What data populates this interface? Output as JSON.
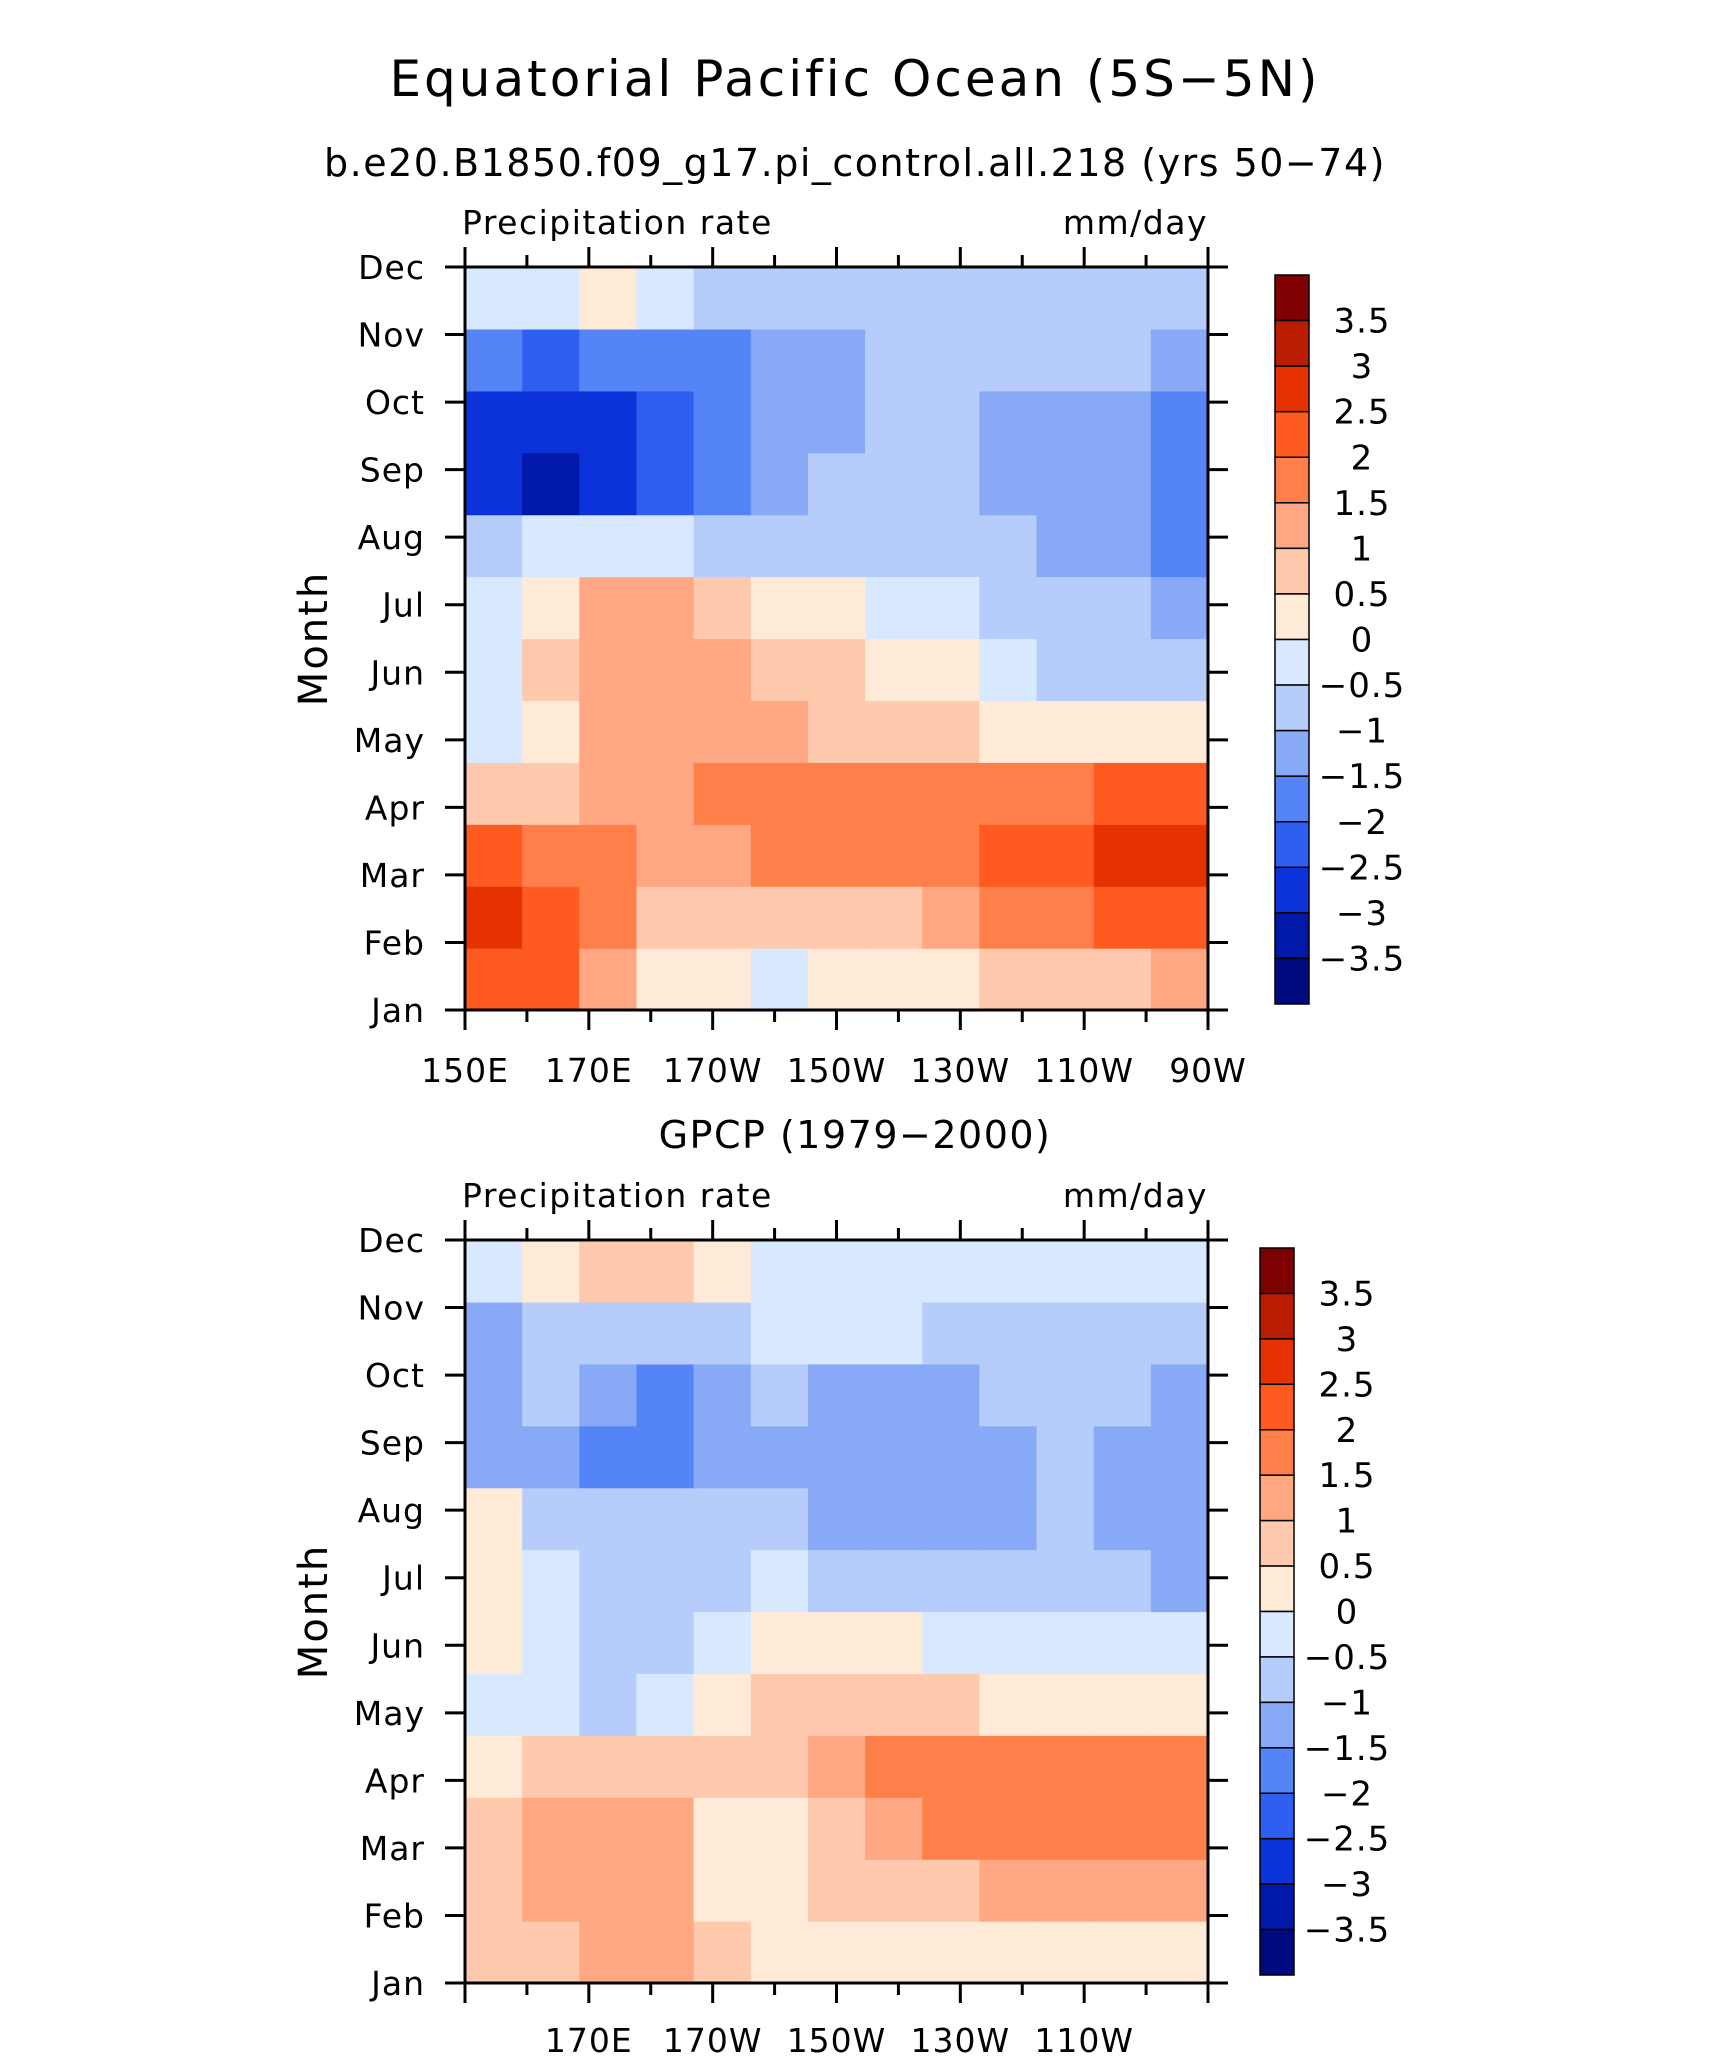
{
  "figure": {
    "title": "Equatorial Pacific Ocean (5S−5N)"
  },
  "colorbar": {
    "labels": [
      "3.5",
      "3",
      "2.5",
      "2",
      "1.5",
      "1",
      "0.5",
      "0",
      "−0.5",
      "−1",
      "−1.5",
      "−2",
      "−2.5",
      "−3",
      "−3.5"
    ],
    "colors": [
      "#7f0000",
      "#b91c00",
      "#e63200",
      "#ff5a1f",
      "#ff7f4a",
      "#ffa783",
      "#ffc9ad",
      "#ffe9d7",
      "#d8e9ff",
      "#b6cdfb",
      "#88a9f6",
      "#5484f5",
      "#2e5ff0",
      "#0c33d9",
      "#0019a8",
      "#000a80"
    ]
  },
  "chart_data": [
    {
      "type": "heatmap",
      "subtitle": "b.e20.B1850.f09_g17.pi_control.all.218 (yrs 50−74)",
      "left_label": "Precipitation rate",
      "right_label": "mm/day",
      "ylabel": "Month",
      "x_ticklabels": [
        "150E",
        "170E",
        "170W",
        "150W",
        "130W",
        "110W",
        "90W"
      ],
      "y_ticklabels": [
        "Jan",
        "Feb",
        "Mar",
        "Apr",
        "May",
        "Jun",
        "Jul",
        "Aug",
        "Sep",
        "Oct",
        "Nov",
        "Dec"
      ],
      "levels": [
        -3.5,
        -3,
        -2.5,
        -2,
        -1.5,
        -1,
        -0.5,
        0,
        0.5,
        1,
        1.5,
        2,
        2.5,
        3,
        3.5
      ],
      "x": [
        "150E",
        "160E",
        "170E",
        "180",
        "170W",
        "160W",
        "150W",
        "140W",
        "130W",
        "120W",
        "110W",
        "100W",
        "90W"
      ],
      "rows": [
        {
          "month": "Jan",
          "values": [
            2.1,
            2.0,
            1.2,
            0.4,
            0.2,
            -0.2,
            0.0,
            0.1,
            0.2,
            0.5,
            0.6,
            0.8,
            1.1
          ]
        },
        {
          "month": "Feb",
          "values": [
            2.8,
            2.2,
            1.6,
            0.8,
            0.6,
            0.5,
            0.7,
            0.9,
            1.1,
            1.5,
            1.8,
            2.0,
            2.1
          ]
        },
        {
          "month": "Mar",
          "values": [
            2.1,
            1.9,
            1.5,
            1.2,
            1.2,
            1.6,
            1.7,
            1.8,
            1.9,
            2.3,
            2.4,
            2.5,
            2.6
          ]
        },
        {
          "month": "Apr",
          "values": [
            0.6,
            0.9,
            1.3,
            1.3,
            1.5,
            1.8,
            1.8,
            1.7,
            1.7,
            1.7,
            1.8,
            2.0,
            2.3
          ]
        },
        {
          "month": "May",
          "values": [
            -0.2,
            0.3,
            1.0,
            1.1,
            1.1,
            1.2,
            0.9,
            0.7,
            0.5,
            0.3,
            0.1,
            0.0,
            0.2
          ]
        },
        {
          "month": "Jun",
          "values": [
            -0.3,
            0.6,
            1.2,
            1.2,
            1.1,
            0.9,
            0.6,
            0.3,
            0.0,
            -0.3,
            -0.6,
            -0.8,
            -0.9
          ]
        },
        {
          "month": "Jul",
          "values": [
            -0.2,
            0.4,
            1.0,
            1.0,
            0.7,
            0.4,
            0.1,
            -0.1,
            -0.4,
            -0.7,
            -0.9,
            -1.0,
            -1.1
          ]
        },
        {
          "month": "Aug",
          "values": [
            -0.8,
            -0.4,
            -0.3,
            -0.4,
            -0.6,
            -0.8,
            -0.8,
            -0.7,
            -0.8,
            -1.0,
            -1.1,
            -1.2,
            -1.6
          ]
        },
        {
          "month": "Sep",
          "values": [
            -2.8,
            -3.1,
            -2.9,
            -2.2,
            -1.6,
            -1.1,
            -0.9,
            -0.8,
            -0.9,
            -1.1,
            -1.2,
            -1.2,
            -1.7
          ]
        },
        {
          "month": "Oct",
          "values": [
            -2.7,
            -3.0,
            -2.7,
            -2.1,
            -1.8,
            -1.3,
            -1.1,
            -1.0,
            -1.0,
            -1.1,
            -1.2,
            -1.2,
            -1.7
          ]
        },
        {
          "month": "Nov",
          "values": [
            -2.0,
            -2.2,
            -2.0,
            -1.8,
            -1.6,
            -1.2,
            -1.1,
            -0.9,
            -0.8,
            -0.8,
            -0.8,
            -0.9,
            -1.3
          ]
        },
        {
          "month": "Dec",
          "values": [
            -0.1,
            -0.4,
            0.1,
            -0.5,
            -0.9,
            -0.9,
            -0.8,
            -0.6,
            -0.6,
            -0.7,
            -0.7,
            -0.6,
            -0.9
          ]
        }
      ]
    },
    {
      "type": "heatmap",
      "subtitle": "GPCP (1979−2000)",
      "left_label": "Precipitation rate",
      "right_label": "mm/day",
      "ylabel": "Month",
      "x_ticklabels": [
        "",
        "170E",
        "170W",
        "150W",
        "130W",
        "110W",
        ""
      ],
      "y_ticklabels": [
        "Jan",
        "Feb",
        "Mar",
        "Apr",
        "May",
        "Jun",
        "Jul",
        "Aug",
        "Sep",
        "Oct",
        "Nov",
        "Dec"
      ],
      "levels": [
        -3.5,
        -3,
        -2.5,
        -2,
        -1.5,
        -1,
        -0.5,
        0,
        0.5,
        1,
        1.5,
        2,
        2.5,
        3,
        3.5
      ],
      "x": [
        "150E",
        "160E",
        "170E",
        "180",
        "170W",
        "160W",
        "150W",
        "140W",
        "130W",
        "120W",
        "110W",
        "100W",
        "90W"
      ],
      "rows": [
        {
          "month": "Jan",
          "values": [
            0.5,
            0.8,
            1.1,
            1.2,
            0.6,
            0.3,
            0.2,
            0.2,
            0.1,
            0.1,
            0.2,
            0.2,
            0.3
          ]
        },
        {
          "month": "Feb",
          "values": [
            0.8,
            1.1,
            1.3,
            1.2,
            0.3,
            0.3,
            0.6,
            0.8,
            0.9,
            1.0,
            1.1,
            1.2,
            1.3
          ]
        },
        {
          "month": "Mar",
          "values": [
            0.8,
            1.1,
            1.3,
            1.1,
            0.2,
            0.4,
            0.9,
            1.4,
            1.6,
            1.8,
            1.7,
            1.9,
            1.7
          ]
        },
        {
          "month": "Apr",
          "values": [
            0.4,
            0.7,
            0.8,
            0.8,
            0.5,
            0.7,
            1.0,
            1.5,
            1.7,
            1.8,
            1.7,
            1.9,
            1.7
          ]
        },
        {
          "month": "May",
          "values": [
            -0.3,
            -0.3,
            -0.7,
            -0.5,
            0.3,
            0.5,
            0.6,
            0.6,
            0.6,
            0.4,
            0.3,
            0.3,
            0.2
          ]
        },
        {
          "month": "Jun",
          "values": [
            0.2,
            -0.4,
            -0.8,
            -0.7,
            -0.3,
            0.1,
            0.1,
            0.0,
            -0.2,
            -0.3,
            -0.4,
            -0.5,
            -0.5
          ]
        },
        {
          "month": "Jul",
          "values": [
            0.3,
            -0.4,
            -0.8,
            -0.8,
            -0.6,
            -0.5,
            -0.7,
            -0.8,
            -0.7,
            -0.7,
            -0.8,
            -1.0,
            -1.2
          ]
        },
        {
          "month": "Aug",
          "values": [
            0.3,
            -0.6,
            -0.9,
            -1.0,
            -0.8,
            -0.8,
            -1.1,
            -1.3,
            -1.3,
            -1.2,
            -0.8,
            -1.1,
            -1.3
          ]
        },
        {
          "month": "Sep",
          "values": [
            -1.5,
            -1.2,
            -1.8,
            -1.6,
            -1.2,
            -1.1,
            -1.2,
            -1.4,
            -1.4,
            -1.2,
            -0.8,
            -1.1,
            -1.2
          ]
        },
        {
          "month": "Oct",
          "values": [
            -1.2,
            -0.8,
            -1.3,
            -1.6,
            -1.1,
            -0.9,
            -1.1,
            -1.3,
            -1.2,
            -1.0,
            -0.8,
            -1.0,
            -1.3
          ]
        },
        {
          "month": "Nov",
          "values": [
            -1.2,
            -0.8,
            -0.7,
            -0.6,
            -0.6,
            -0.5,
            -0.4,
            -0.5,
            -0.6,
            -0.6,
            -0.6,
            -0.7,
            -0.8
          ]
        },
        {
          "month": "Dec",
          "values": [
            -0.3,
            0.2,
            0.8,
            0.6,
            0.3,
            -0.2,
            -0.4,
            -0.3,
            -0.4,
            -0.4,
            -0.3,
            -0.3,
            -0.4
          ]
        }
      ]
    }
  ]
}
